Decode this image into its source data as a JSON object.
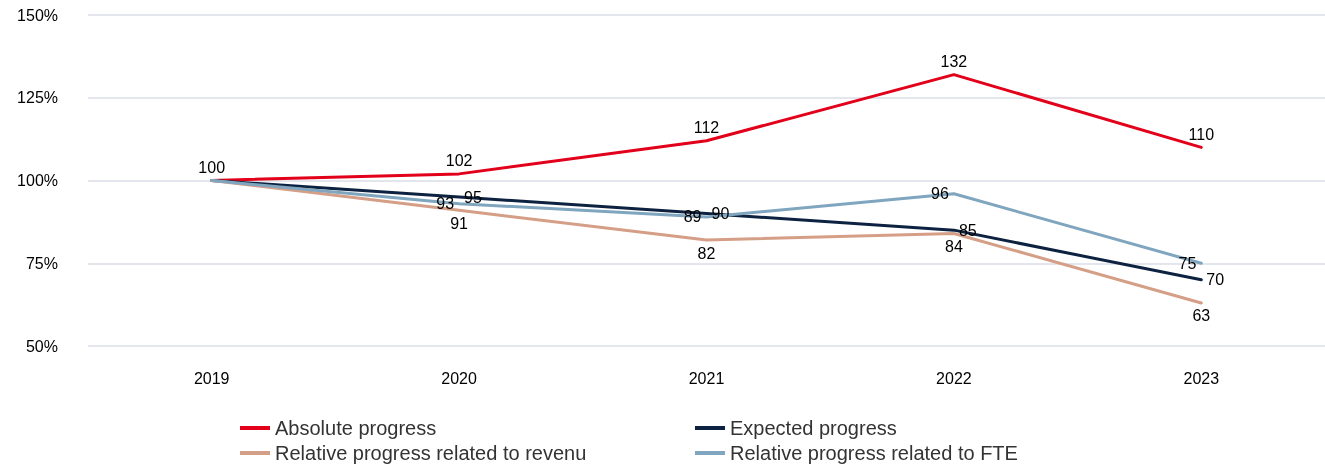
{
  "chart_data": {
    "type": "line",
    "categories": [
      "2019",
      "2020",
      "2021",
      "2022",
      "2023"
    ],
    "series": [
      {
        "name": "Absolute progress",
        "color": "#e2001a",
        "values": [
          100,
          102,
          112,
          132,
          110
        ],
        "value_labels": [
          "100",
          "102",
          "112",
          "132",
          "110"
        ]
      },
      {
        "name": "Expected progress",
        "color": "#0d2240",
        "values": [
          100,
          95,
          90,
          85,
          70
        ],
        "value_labels": [
          null,
          "95",
          "90",
          "85",
          "70"
        ]
      },
      {
        "name": "Relative progress related to revenu",
        "color": "#d59e86",
        "values": [
          100,
          91,
          82,
          84,
          63
        ],
        "value_labels": [
          null,
          "91",
          "82",
          "84",
          "63"
        ]
      },
      {
        "name": "Relative progress related to FTE",
        "color": "#7fa5bf",
        "values": [
          100,
          93,
          89,
          96,
          75
        ],
        "value_labels": [
          null,
          "93",
          "89",
          "96",
          "75"
        ]
      }
    ],
    "ylim": [
      50,
      150
    ],
    "yticks": [
      {
        "value": 50,
        "label": "50%"
      },
      {
        "value": 75,
        "label": "75%"
      },
      {
        "value": 100,
        "label": "100%"
      },
      {
        "value": 125,
        "label": "125%"
      },
      {
        "value": 150,
        "label": "150%"
      }
    ],
    "grid": "y",
    "legend": "bottom",
    "marker": "none",
    "line_style": "solid"
  }
}
